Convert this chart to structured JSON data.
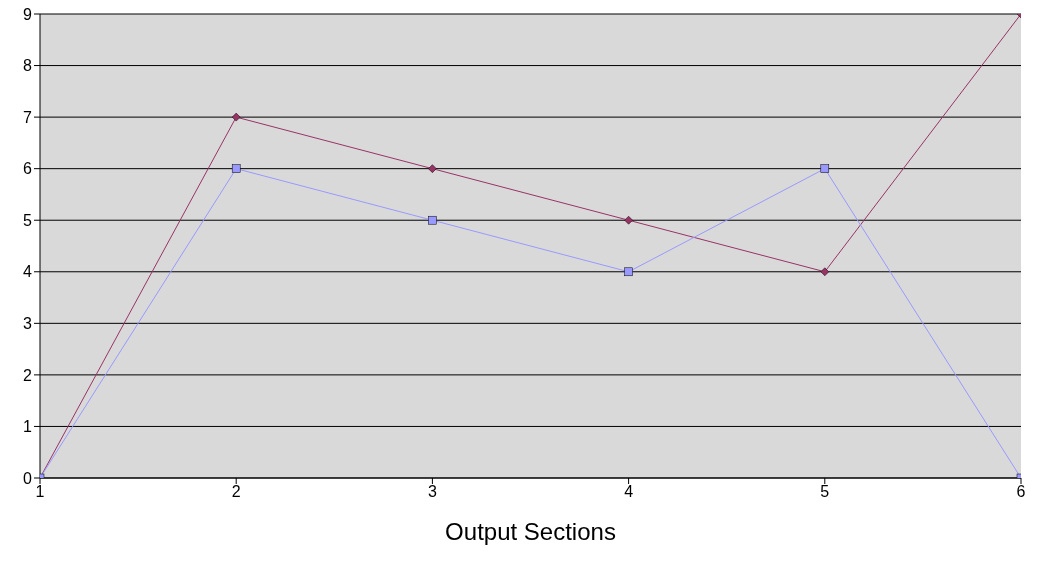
{
  "chart_data": {
    "type": "line",
    "xlabel": "Output Sections",
    "x": [
      1,
      2,
      3,
      4,
      5,
      6
    ],
    "series": [
      {
        "color": "#993366",
        "marker": "diamond",
        "values": [
          0,
          7,
          6,
          5,
          4,
          9
        ]
      },
      {
        "color": "#9999ff",
        "marker": "square",
        "values": [
          0,
          6,
          5,
          4,
          6,
          0
        ]
      }
    ],
    "xlim": [
      1,
      6
    ],
    "xticks": [
      1,
      2,
      3,
      4,
      5,
      6
    ],
    "ylim": [
      0,
      9
    ],
    "yticks": [
      0,
      1,
      2,
      3,
      4,
      5,
      6,
      7,
      8,
      9
    ],
    "grid": "y",
    "legend": false
  }
}
